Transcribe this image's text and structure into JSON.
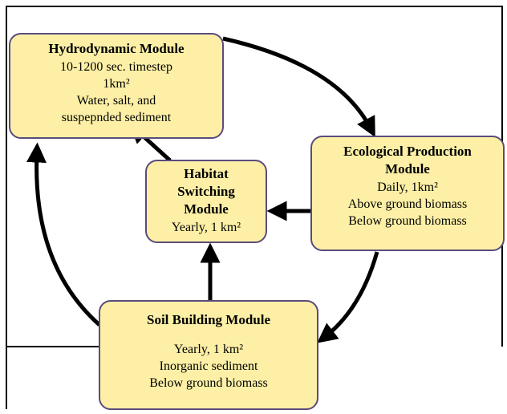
{
  "nodes": [
    {
      "title_lines": [
        "Hydrodynamic Module"
      ],
      "lines": [
        "10-1200 sec. timestep",
        "1km²",
        "Water, salt, and",
        "suspepnded sediment"
      ]
    },
    {
      "title_lines": [
        "Ecological Production",
        "Module"
      ],
      "lines": [
        "Daily, 1km²",
        "Above ground biomass",
        "Below ground biomass"
      ]
    },
    {
      "title_lines": [
        "Habitat",
        "Switching",
        "Module"
      ],
      "lines": [
        "Yearly, 1 km²"
      ]
    },
    {
      "title_lines": [
        "Soil Building Module"
      ],
      "lines": [
        "Yearly, 1 km²",
        "Inorganic sediment",
        "Below ground biomass"
      ]
    }
  ]
}
